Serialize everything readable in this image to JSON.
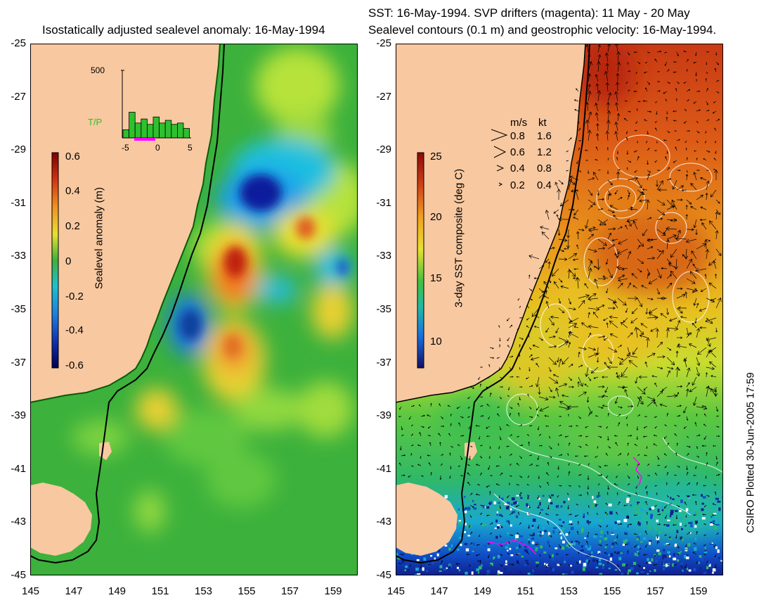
{
  "left_title": "Isostatically adjusted sealevel anomaly: 16-May-1994",
  "right_title_line1": "SST: 16-May-1994. SVP drifters (magenta): 11 May - 20 May",
  "right_title_line2": "Sealevel contours (0.1 m) and geostrophic velocity: 16-May-1994.",
  "x_ticks": [
    "145",
    "147",
    "149",
    "151",
    "153",
    "155",
    "157",
    "159"
  ],
  "y_ticks": [
    "-25",
    "-27",
    "-29",
    "-31",
    "-33",
    "-35",
    "-37",
    "-39",
    "-41",
    "-43",
    "-45"
  ],
  "left_colorbar": {
    "title": "Sealevel anomaly (m)",
    "ticks": [
      "0.6",
      "0.4",
      "0.2",
      "0",
      "-0.2",
      "-0.4",
      "-0.6"
    ]
  },
  "right_colorbar": {
    "title": "3-day SST composite (deg C)",
    "ticks": [
      "25",
      "20",
      "15",
      "10"
    ]
  },
  "histogram": {
    "y_label": "500",
    "series_label": "T/P",
    "x_ticks": [
      "-5",
      "0",
      "5"
    ],
    "values": [
      0.12,
      0.38,
      0.22,
      0.28,
      0.2,
      0.31,
      0.22,
      0.26,
      0.2,
      0.22,
      0.14
    ]
  },
  "velocity_legend": {
    "header_ms": "m/s",
    "header_kt": "kt",
    "rows": [
      {
        "ms": "0.8",
        "kt": "1.6"
      },
      {
        "ms": "0.6",
        "kt": "1.2"
      },
      {
        "ms": "0.4",
        "kt": "0.8"
      },
      {
        "ms": "0.2",
        "kt": "0.4"
      }
    ]
  },
  "credit": "CSIRO Plotted 30-Jun-2005 17:59",
  "colors": {
    "land": "#f8c8a0",
    "coast": "#000000",
    "base_green": "#3cb13c",
    "drifter": "#ff00ff"
  }
}
